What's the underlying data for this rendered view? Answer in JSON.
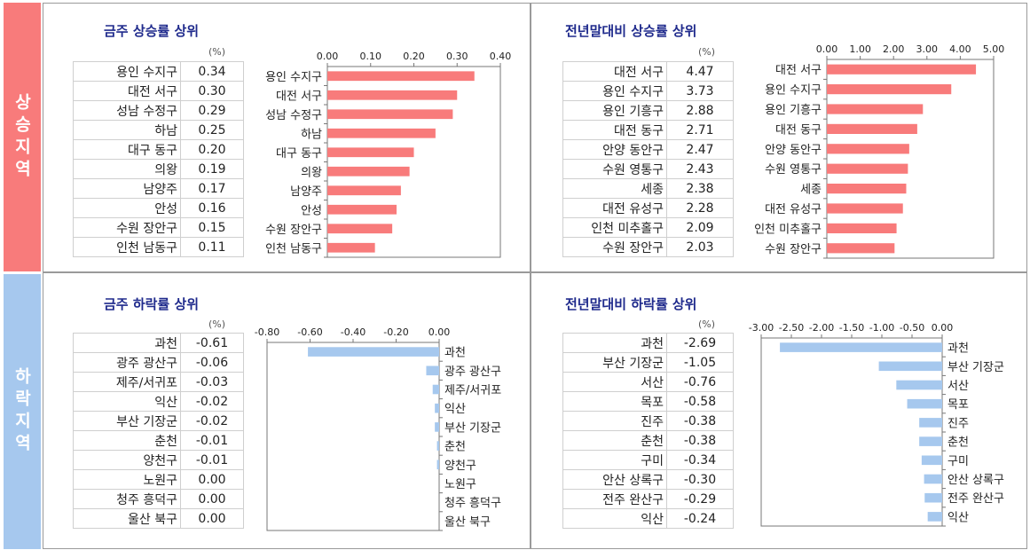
{
  "sidebar": {
    "up_label": "상승지역",
    "down_label": "하락지역"
  },
  "colors": {
    "up_bar": "#f87b7b",
    "down_bar": "#a6c8ee",
    "up_side": "#f87b7b",
    "down_side": "#a6c8ee"
  },
  "unit_label": "(%)",
  "panels": {
    "week_up": {
      "title": "금주 상승률 상위",
      "rows": [
        {
          "name": "용인 수지구",
          "value": "0.34"
        },
        {
          "name": "대전 서구",
          "value": "0.30"
        },
        {
          "name": "성남 수정구",
          "value": "0.29"
        },
        {
          "name": "하남",
          "value": "0.25"
        },
        {
          "name": "대구 동구",
          "value": "0.20"
        },
        {
          "name": "의왕",
          "value": "0.19"
        },
        {
          "name": "남양주",
          "value": "0.17"
        },
        {
          "name": "안성",
          "value": "0.16"
        },
        {
          "name": "수원 장안구",
          "value": "0.15"
        },
        {
          "name": "인천 남동구",
          "value": "0.11"
        }
      ]
    },
    "year_up": {
      "title": "전년말대비 상승률 상위",
      "rows": [
        {
          "name": "대전 서구",
          "value": "4.47"
        },
        {
          "name": "용인 수지구",
          "value": "3.73"
        },
        {
          "name": "용인 기흥구",
          "value": "2.88"
        },
        {
          "name": "대전 동구",
          "value": "2.71"
        },
        {
          "name": "안양 동안구",
          "value": "2.47"
        },
        {
          "name": "수원 영통구",
          "value": "2.43"
        },
        {
          "name": "세종",
          "value": "2.38"
        },
        {
          "name": "대전 유성구",
          "value": "2.28"
        },
        {
          "name": "인천 미추홀구",
          "value": "2.09"
        },
        {
          "name": "수원 장안구",
          "value": "2.03"
        }
      ]
    },
    "week_down": {
      "title": "금주 하락률 상위",
      "rows": [
        {
          "name": "과천",
          "value": "-0.61"
        },
        {
          "name": "광주 광산구",
          "value": "-0.06"
        },
        {
          "name": "제주/서귀포",
          "value": "-0.03"
        },
        {
          "name": "익산",
          "value": "-0.02"
        },
        {
          "name": "부산 기장군",
          "value": "-0.02"
        },
        {
          "name": "춘천",
          "value": "-0.01"
        },
        {
          "name": "양천구",
          "value": "-0.01"
        },
        {
          "name": "노원구",
          "value": "0.00"
        },
        {
          "name": "청주 흥덕구",
          "value": "0.00"
        },
        {
          "name": "울산 북구",
          "value": "0.00"
        }
      ]
    },
    "year_down": {
      "title": "전년말대비 하락률 상위",
      "rows": [
        {
          "name": "과천",
          "value": "-2.69"
        },
        {
          "name": "부산 기장군",
          "value": "-1.05"
        },
        {
          "name": "서산",
          "value": "-0.76"
        },
        {
          "name": "목포",
          "value": "-0.58"
        },
        {
          "name": "진주",
          "value": "-0.38"
        },
        {
          "name": "춘천",
          "value": "-0.38"
        },
        {
          "name": "구미",
          "value": "-0.34"
        },
        {
          "name": "안산 상록구",
          "value": "-0.30"
        },
        {
          "name": "전주 완산구",
          "value": "-0.29"
        },
        {
          "name": "익산",
          "value": "-0.24"
        }
      ]
    }
  },
  "chart_data": [
    {
      "id": "week_up",
      "type": "bar",
      "orientation": "horizontal",
      "categories": [
        "용인 수지구",
        "대전 서구",
        "성남 수정구",
        "하남",
        "대구 동구",
        "의왕",
        "남양주",
        "안성",
        "수원 장안구",
        "인천 남동구"
      ],
      "values": [
        0.34,
        0.3,
        0.29,
        0.25,
        0.2,
        0.19,
        0.17,
        0.16,
        0.15,
        0.11
      ],
      "xlim": [
        0,
        0.4
      ],
      "ticks": [
        "0.00",
        "0.10",
        "0.20",
        "0.30",
        "0.40"
      ]
    },
    {
      "id": "year_up",
      "type": "bar",
      "orientation": "horizontal",
      "categories": [
        "대전 서구",
        "용인 수지구",
        "용인 기흥구",
        "대전 동구",
        "안양 동안구",
        "수원 영통구",
        "세종",
        "대전 유성구",
        "인천 미추홀구",
        "수원 장안구"
      ],
      "values": [
        4.47,
        3.73,
        2.88,
        2.71,
        2.47,
        2.43,
        2.38,
        2.28,
        2.09,
        2.03
      ],
      "xlim": [
        0,
        5.0
      ],
      "ticks": [
        "0.00",
        "1.00",
        "2.00",
        "3.00",
        "4.00",
        "5.00"
      ]
    },
    {
      "id": "week_down",
      "type": "bar",
      "orientation": "horizontal",
      "categories": [
        "과천",
        "광주 광산구",
        "제주/서귀포",
        "익산",
        "부산 기장군",
        "춘천",
        "양천구",
        "노원구",
        "청주 흥덕구",
        "울산 북구"
      ],
      "values": [
        -0.61,
        -0.06,
        -0.03,
        -0.02,
        -0.02,
        -0.01,
        -0.01,
        0.0,
        0.0,
        0.0
      ],
      "xlim": [
        -0.8,
        0.0
      ],
      "ticks": [
        "-0.80",
        "-0.60",
        "-0.40",
        "-0.20",
        "0.00"
      ]
    },
    {
      "id": "year_down",
      "type": "bar",
      "orientation": "horizontal",
      "categories": [
        "과천",
        "부산 기장군",
        "서산",
        "목포",
        "진주",
        "춘천",
        "구미",
        "안산 상록구",
        "전주 완산구",
        "익산"
      ],
      "values": [
        -2.69,
        -1.05,
        -0.76,
        -0.58,
        -0.38,
        -0.38,
        -0.34,
        -0.3,
        -0.29,
        -0.24
      ],
      "xlim": [
        -3.0,
        0.0
      ],
      "ticks": [
        "-3.00",
        "-2.50",
        "-2.00",
        "-1.50",
        "-1.00",
        "-0.50",
        "0.00"
      ]
    }
  ]
}
